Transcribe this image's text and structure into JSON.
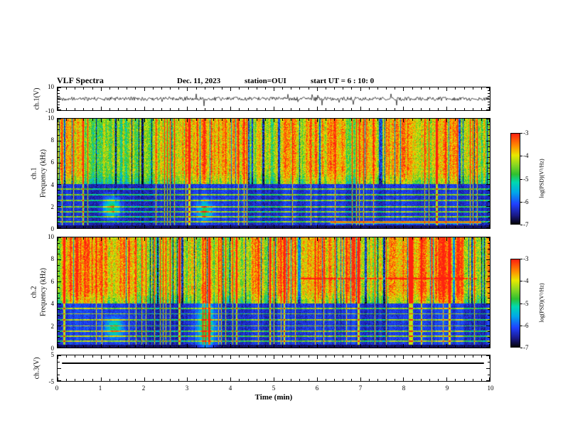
{
  "header": {
    "title": "VLF Spectra",
    "date": "Dec. 11, 2023",
    "station": "station=OUI",
    "start_ut": "start UT =  6 : 10: 0"
  },
  "x_axis": {
    "label": "Time (min)",
    "min": 0,
    "max": 10,
    "major_ticks": [
      0,
      1,
      2,
      3,
      4,
      5,
      6,
      7,
      8,
      9,
      10
    ],
    "minor_step": 0.2
  },
  "panels": {
    "ch1_wave": {
      "label": "ch.1(V)",
      "ymin": -10,
      "ymax": 10,
      "ytick_labels": [
        10,
        -10
      ],
      "ytick_step": 2.5,
      "ymajor_step": 10
    },
    "ch1_spec": {
      "label_line1": "ch.1",
      "label_line2": "Frequency (kHz)",
      "ymin": 0,
      "ymax": 10,
      "ytick_labels": [
        10,
        8,
        6,
        4,
        2,
        0
      ],
      "ytick_step": 0.5,
      "ymajor_step": 2
    },
    "ch2_spec": {
      "label_line1": "ch.2",
      "label_line2": "Frequency (kHz)",
      "ymin": 0,
      "ymax": 10,
      "ytick_labels": [
        10,
        8,
        6,
        4,
        2,
        0
      ],
      "ytick_step": 0.5,
      "ymajor_step": 2
    },
    "ch3": {
      "label": "ch.3(V)",
      "ymin": -5,
      "ymax": 5,
      "ytick_labels": [
        5,
        -5
      ],
      "ytick_step": 2.5,
      "ymajor_step": 5,
      "line_value": 2
    }
  },
  "colorbar": {
    "label": "log(PSD)(V²/Hz)",
    "min": -7,
    "max": -3,
    "ticks": [
      -3,
      -4,
      -5,
      -6,
      -7
    ],
    "stops": [
      [
        0,
        "#05030a"
      ],
      [
        0.1,
        "#1a1a8c"
      ],
      [
        0.22,
        "#2040ff"
      ],
      [
        0.35,
        "#00a8e8"
      ],
      [
        0.46,
        "#00d8b0"
      ],
      [
        0.55,
        "#30c030"
      ],
      [
        0.66,
        "#90d820"
      ],
      [
        0.76,
        "#e8e800"
      ],
      [
        0.86,
        "#ff9000"
      ],
      [
        1,
        "#ff2010"
      ]
    ]
  },
  "chart_data": [
    {
      "type": "line",
      "title": "ch.1(V) time series",
      "xlabel": "Time (min)",
      "ylabel": "ch.1(V)",
      "xlim": [
        0,
        10
      ],
      "ylim": [
        -10,
        10
      ],
      "description": "Dense noisy waveform centered on 0 V; amplitude mostly within ±2 V with frequent impulsive spikes reaching roughly ±5 to ±8 V throughout the 10-minute record."
    },
    {
      "type": "heatmap",
      "title": "ch.1 VLF spectrogram",
      "xlabel": "Time (min)",
      "ylabel": "Frequency (kHz)",
      "xlim": [
        0,
        10
      ],
      "ylim": [
        0,
        10
      ],
      "zlabel": "log(PSD)(V²/Hz)",
      "zlim": [
        -7,
        -3
      ],
      "description": "Broadband vertical striations (impulsive sferics) above ~4 kHz in green/yellow with red bursts and dark-blue gaps; below ~4 kHz a quieter dark-blue background with narrowband horizontal emission lines, cyan patches near 1.2 min and 3.4 min, and an enhanced reddish line near 0.5 kHz after ~6.3 min.",
      "features": [
        {
          "kind": "blob",
          "x": 1.25,
          "f": 1.9,
          "rx": 0.2,
          "rf": 0.9,
          "amp": 1.6
        },
        {
          "kind": "blob",
          "x": 3.4,
          "f": 1.6,
          "rx": 0.18,
          "rf": 0.8,
          "amp": 1.3
        },
        {
          "kind": "hline",
          "f": 0.55,
          "x0": 6.3,
          "x1": 9.8,
          "rf": 0.08,
          "amp": 2.6
        }
      ]
    },
    {
      "type": "heatmap",
      "title": "ch.2 VLF spectrogram",
      "xlabel": "Time (min)",
      "ylabel": "Frequency (kHz)",
      "xlim": [
        0,
        10
      ],
      "ylim": [
        0,
        10
      ],
      "zlabel": "log(PSD)(V²/Hz)",
      "zlim": [
        -7,
        -3
      ],
      "description": "Similar broadband striations above ~4 kHz; a strong broadband burst near 3.4 min extending down to low frequencies; narrowband reddish line near 6.3 kHz between ~5.6 and 9.7 min; cyan patch near 1.3 min at ~1.8 kHz.",
      "features": [
        {
          "kind": "blob",
          "x": 3.42,
          "f": 2.0,
          "rx": 0.2,
          "rf": 2.4,
          "amp": 1.7
        },
        {
          "kind": "blob",
          "x": 1.3,
          "f": 1.8,
          "rx": 0.18,
          "rf": 0.9,
          "amp": 1.4
        },
        {
          "kind": "hline",
          "f": 6.3,
          "x0": 5.6,
          "x1": 9.7,
          "rf": 0.07,
          "amp": 1.5
        }
      ]
    },
    {
      "type": "line",
      "title": "ch.3(V) time series",
      "xlabel": "Time (min)",
      "ylabel": "ch.3(V)",
      "xlim": [
        0,
        10
      ],
      "ylim": [
        -5,
        5
      ],
      "x": [
        0.1,
        9.9
      ],
      "y": [
        2,
        2
      ],
      "description": "Constant flat trace at about +2 V for the full record."
    }
  ]
}
